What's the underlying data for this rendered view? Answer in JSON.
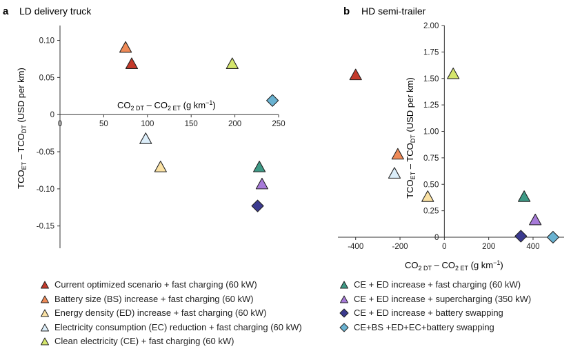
{
  "chart_data": [
    {
      "type": "scatter",
      "panel_letter": "a",
      "title": "LD delivery truck",
      "xlabel_main": "CO",
      "xlabel_sub1": "2 DT",
      "xlabel_mid": " – CO",
      "xlabel_sub2": "2 ET",
      "xlabel_unit": " (g km",
      "xlabel_sup": "−1",
      "xlabel_close": ")",
      "ylabel": "TCO_ET – TCO_DT (USD per km)",
      "xlim": [
        0,
        250
      ],
      "ylim": [
        -0.18,
        0.12
      ],
      "xticks": [
        0,
        50,
        100,
        150,
        200,
        250
      ],
      "xtick_labels": [
        "0",
        "50",
        "100",
        "150",
        "200",
        "250"
      ],
      "yticks": [
        0.1,
        0.05,
        0,
        -0.05,
        -0.1,
        -0.15
      ],
      "ytick_labels": [
        "0.10",
        "0.05",
        "0",
        "-0.05",
        "-0.10",
        "-0.15"
      ],
      "points": [
        {
          "series": "current",
          "x": 82,
          "y": 0.068
        },
        {
          "series": "bs",
          "x": 75,
          "y": 0.09
        },
        {
          "series": "ed",
          "x": 115,
          "y": -0.071
        },
        {
          "series": "ec",
          "x": 98,
          "y": -0.033
        },
        {
          "series": "clean",
          "x": 197,
          "y": 0.068
        },
        {
          "series": "ce_ed_fast",
          "x": 228,
          "y": -0.071
        },
        {
          "series": "ce_ed_super",
          "x": 231,
          "y": -0.094
        },
        {
          "series": "ce_ed_swap",
          "x": 226,
          "y": -0.123
        },
        {
          "series": "ce_all_swap",
          "x": 243,
          "y": 0.019
        }
      ]
    },
    {
      "type": "scatter",
      "panel_letter": "b",
      "title": "HD semi-trailer",
      "xlabel_main": "CO",
      "xlabel_sub1": "2 DT",
      "xlabel_mid": " – CO",
      "xlabel_sub2": "2 ET",
      "xlabel_unit": " (g km",
      "xlabel_sup": "−1",
      "xlabel_close": ")",
      "ylabel": "TCO_ET – TCO_DT (USD per km)",
      "xlim": [
        -480,
        540
      ],
      "ylim": [
        0,
        2.0
      ],
      "xticks": [
        -400,
        -200,
        0,
        200,
        400
      ],
      "xtick_labels": [
        "-400",
        "-200",
        "0",
        "200",
        "400"
      ],
      "yticks": [
        0,
        0.25,
        0.5,
        0.75,
        1.0,
        1.25,
        1.5,
        1.75,
        2.0
      ],
      "ytick_labels": [
        "0",
        "0.25",
        "0.50",
        "0.75",
        "1.00",
        "1.25",
        "1.50",
        "1.75",
        "2.00"
      ],
      "points": [
        {
          "series": "current",
          "x": -400,
          "y": 1.53
        },
        {
          "series": "bs",
          "x": -210,
          "y": 0.78
        },
        {
          "series": "ed",
          "x": -75,
          "y": 0.38
        },
        {
          "series": "ec",
          "x": -225,
          "y": 0.6
        },
        {
          "series": "clean",
          "x": 40,
          "y": 1.54
        },
        {
          "series": "ce_ed_fast",
          "x": 360,
          "y": 0.38
        },
        {
          "series": "ce_ed_super",
          "x": 410,
          "y": 0.16
        },
        {
          "series": "ce_ed_swap",
          "x": 345,
          "y": 0.01
        },
        {
          "series": "ce_all_swap",
          "x": 490,
          "y": 0.0
        }
      ]
    }
  ],
  "series": [
    {
      "id": "current",
      "marker": "triangle",
      "color": "#c43a2b",
      "label": "Current optimized scenario + fast charging (60 kW)"
    },
    {
      "id": "bs",
      "marker": "triangle",
      "color": "#ef8a57",
      "label": "Battery size (BS) increase + fast charging (60 kW)"
    },
    {
      "id": "ed",
      "marker": "triangle",
      "color": "#fbe2a4",
      "label": "Energy density (ED) increase + fast charging (60 kW)"
    },
    {
      "id": "ec",
      "marker": "triangle",
      "color": "#dceefa",
      "label": "Electricity consumption (EC) reduction + fast charging (60 kW)"
    },
    {
      "id": "clean",
      "marker": "triangle",
      "color": "#d5e66c",
      "label": "Clean electricity (CE) + fast charging (60 kW)"
    },
    {
      "id": "ce_ed_fast",
      "marker": "triangle",
      "color": "#3e9a86",
      "label": "CE + ED increase + fast charging (60 kW)"
    },
    {
      "id": "ce_ed_super",
      "marker": "triangle",
      "color": "#a77ad9",
      "label": "CE + ED increase + supercharging (350 kW)"
    },
    {
      "id": "ce_ed_swap",
      "marker": "diamond",
      "color": "#3b3a8f",
      "label": "CE + ED increase + battery swapping"
    },
    {
      "id": "ce_all_swap",
      "marker": "diamond",
      "color": "#69b2d1",
      "label": "CE+BS +ED+EC+battery swapping"
    }
  ]
}
